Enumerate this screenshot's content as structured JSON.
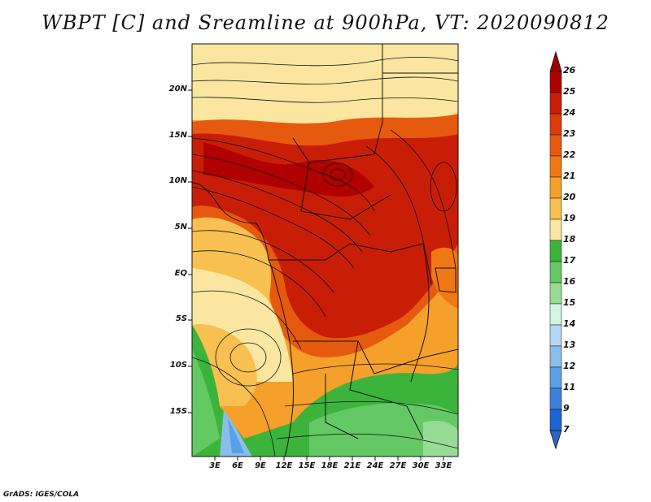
{
  "title": "WBPT [C] and Sreamline at 900hPa, VT: 2020090812",
  "credit": "GrADS: IGES/COLA",
  "lat_labels": [
    "20N",
    "15N",
    "10N",
    "5N",
    "EQ",
    "5S",
    "10S",
    "15S"
  ],
  "lon_labels": [
    "3E",
    "6E",
    "9E",
    "12E",
    "15E",
    "18E",
    "21E",
    "24E",
    "27E",
    "30E",
    "33E"
  ],
  "colorbar": {
    "levels": [
      "26",
      "25",
      "24",
      "23",
      "22",
      "21",
      "20",
      "19",
      "18",
      "17",
      "16",
      "15",
      "14",
      "13",
      "12",
      "11",
      "9",
      "7"
    ],
    "colors": [
      "#b00000",
      "#c81e08",
      "#dc3c0c",
      "#e65a10",
      "#f07814",
      "#f5a02a",
      "#f8c050",
      "#fae6a0",
      "#3cb43c",
      "#64c864",
      "#96dc96",
      "#d2f5e6",
      "#b4d7f5",
      "#8cbeeb",
      "#5aa0e6",
      "#3c82dc",
      "#1e64d2"
    ],
    "top_arrow_color": "#a00000",
    "bottom_arrow_color": "#2d64c8"
  }
}
